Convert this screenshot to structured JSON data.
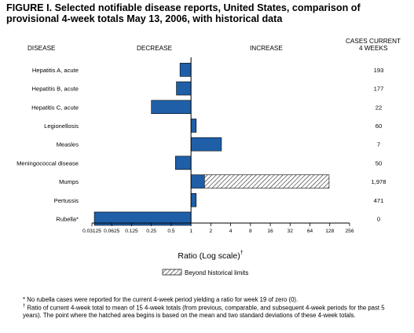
{
  "chart_data": {
    "type": "bar",
    "title": "FIGURE I. Selected notifiable disease reports, United States, comparison of provisional 4-week totals May 13, 2006, with historical data",
    "headers": {
      "disease": "DISEASE",
      "decrease": "DECREASE",
      "increase": "INCREASE",
      "cases_line1": "CASES CURRENT",
      "cases_line2": "4 WEEKS"
    },
    "xlabel": "Ratio (Log scale)",
    "xlabel_mark": "†",
    "xscale": "log2",
    "xlim": [
      0.03125,
      256
    ],
    "xticks": [
      "0.03125",
      "0.0625",
      "0.125",
      "0.25",
      "0.5",
      "1",
      "2",
      "4",
      "8",
      "16",
      "32",
      "64",
      "128",
      "256"
    ],
    "categories": [
      "Hepatitis A, acute",
      "Hepatitis B, acute",
      "Hepatitis C, acute",
      "Legionellosis",
      "Measles",
      "Meningococcal disease",
      "Mumps",
      "Pertussis",
      "Rubella*"
    ],
    "ratios": [
      0.68,
      0.6,
      0.25,
      1.2,
      2.9,
      0.58,
      1.6,
      1.2,
      0.034
    ],
    "beyond_historical_limits_to": [
      null,
      null,
      null,
      null,
      null,
      null,
      125,
      null,
      null
    ],
    "cases_current_4_weeks": [
      "193",
      "177",
      "22",
      "60",
      "7",
      "50",
      "1,978",
      "471",
      "0"
    ],
    "legend": {
      "label": "Beyond historical limits",
      "position": "bottom-center"
    },
    "colors": {
      "bar": "#1f5fa8",
      "outline": "#000000"
    },
    "grid": false
  },
  "footnotes": {
    "star": "* No rubella cases were reported for the current 4-week period yielding a ratio for week 19 of zero (0).",
    "dagger_mark": "†",
    "dagger": "Ratio of current 4-week total to mean of 15 4-week totals (from previous, comparable, and subsequent 4-week periods for the past 5 years). The point where the hatched area begins is based on the mean and two standard deviations of these 4-week totals."
  }
}
